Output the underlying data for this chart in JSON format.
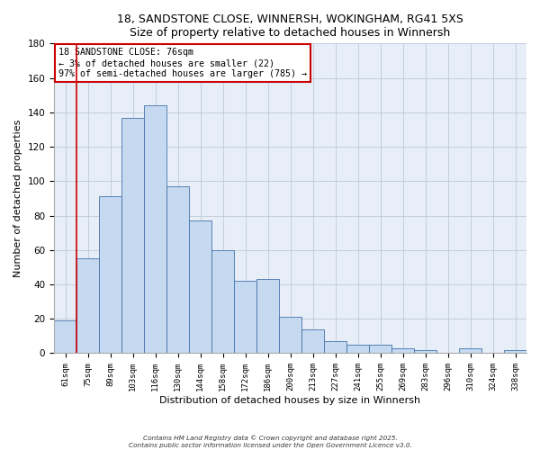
{
  "title": "18, SANDSTONE CLOSE, WINNERSH, WOKINGHAM, RG41 5XS",
  "subtitle": "Size of property relative to detached houses in Winnersh",
  "xlabel": "Distribution of detached houses by size in Winnersh",
  "ylabel": "Number of detached properties",
  "categories": [
    "61sqm",
    "75sqm",
    "89sqm",
    "103sqm",
    "116sqm",
    "130sqm",
    "144sqm",
    "158sqm",
    "172sqm",
    "186sqm",
    "200sqm",
    "213sqm",
    "227sqm",
    "241sqm",
    "255sqm",
    "269sqm",
    "283sqm",
    "296sqm",
    "310sqm",
    "324sqm",
    "338sqm"
  ],
  "values": [
    19,
    55,
    91,
    137,
    144,
    97,
    77,
    60,
    42,
    43,
    21,
    14,
    7,
    5,
    5,
    3,
    2,
    0,
    3,
    0,
    2
  ],
  "bar_color": "#c5d9f1",
  "bar_edge_color": "#4472a8",
  "grid_color": "#c0c8d8",
  "background_color": "#e8eef8",
  "vline_color": "#cc0000",
  "annotation_box_text": "18 SANDSTONE CLOSE: 76sqm\n← 3% of detached houses are smaller (22)\n97% of semi-detached houses are larger (785) →",
  "annotation_box_edge_color": "#cc0000",
  "ylim": [
    0,
    180
  ],
  "yticks": [
    0,
    20,
    40,
    60,
    80,
    100,
    120,
    140,
    160,
    180
  ],
  "footer1": "Contains HM Land Registry data © Crown copyright and database right 2025.",
  "footer2": "Contains public sector information licensed under the Open Government Licence v3.0."
}
